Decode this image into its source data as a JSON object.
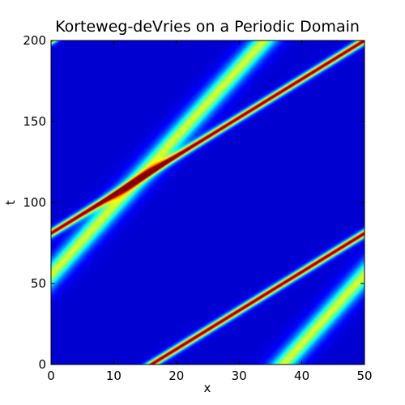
{
  "chart_data": {
    "type": "heatmap",
    "title": "Korteweg-deVries on a Periodic Domain",
    "xlabel": "x",
    "ylabel": "t",
    "xlim": [
      0,
      50
    ],
    "ylim": [
      0,
      200
    ],
    "x_ticks": [
      0,
      10,
      20,
      30,
      40,
      50
    ],
    "y_ticks": [
      0,
      50,
      100,
      150,
      200
    ],
    "grid": false,
    "legend": "none",
    "colormap": "jet",
    "value_range": [
      0,
      1
    ],
    "solitons": [
      {
        "label": "tall narrow soliton",
        "amplitude": 1.0,
        "x_at_t0": 16.0,
        "speed_x_per_t": 0.42,
        "width": 0.9
      },
      {
        "label": "short wide soliton",
        "amplitude": 0.55,
        "x_at_t0": 37.0,
        "speed_x_per_t": 0.235,
        "width": 1.9
      }
    ]
  },
  "colors": {
    "background": "#ffffff",
    "low": "#00008f",
    "high": "#800000"
  }
}
